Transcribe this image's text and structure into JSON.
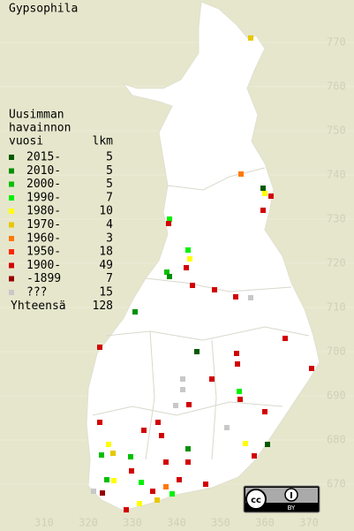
{
  "title": "Gypsophila",
  "legend": {
    "heading": [
      "Uusimman",
      "havainnon",
      "vuosi"
    ],
    "count_header": "lkm",
    "rows": [
      {
        "label": "2015-",
        "count": 5,
        "color": "#005a00"
      },
      {
        "label": "2010-",
        "count": 5,
        "color": "#009000"
      },
      {
        "label": "2000-",
        "count": 5,
        "color": "#00c000"
      },
      {
        "label": "1990-",
        "count": 7,
        "color": "#00f000"
      },
      {
        "label": "1980-",
        "count": 10,
        "color": "#ffff00"
      },
      {
        "label": "1970-",
        "count": 4,
        "color": "#e6c800"
      },
      {
        "label": "1960-",
        "count": 3,
        "color": "#ff7800"
      },
      {
        "label": "1950-",
        "count": 18,
        "color": "#ff2800"
      },
      {
        "label": "1900-",
        "count": 49,
        "color": "#d20000"
      },
      {
        "label": "-1899",
        "count": 7,
        "color": "#960000"
      },
      {
        "label": "???",
        "count": 15,
        "color": "#c8c8c8"
      }
    ],
    "total_label": "Yhteensä",
    "total": 128
  },
  "y_labels": [
    "770",
    "760",
    "750",
    "740",
    "730",
    "720",
    "710",
    "700",
    "690",
    "680",
    "670"
  ],
  "x_labels": [
    "310",
    "320",
    "330",
    "340",
    "350",
    "360",
    "370"
  ]
}
